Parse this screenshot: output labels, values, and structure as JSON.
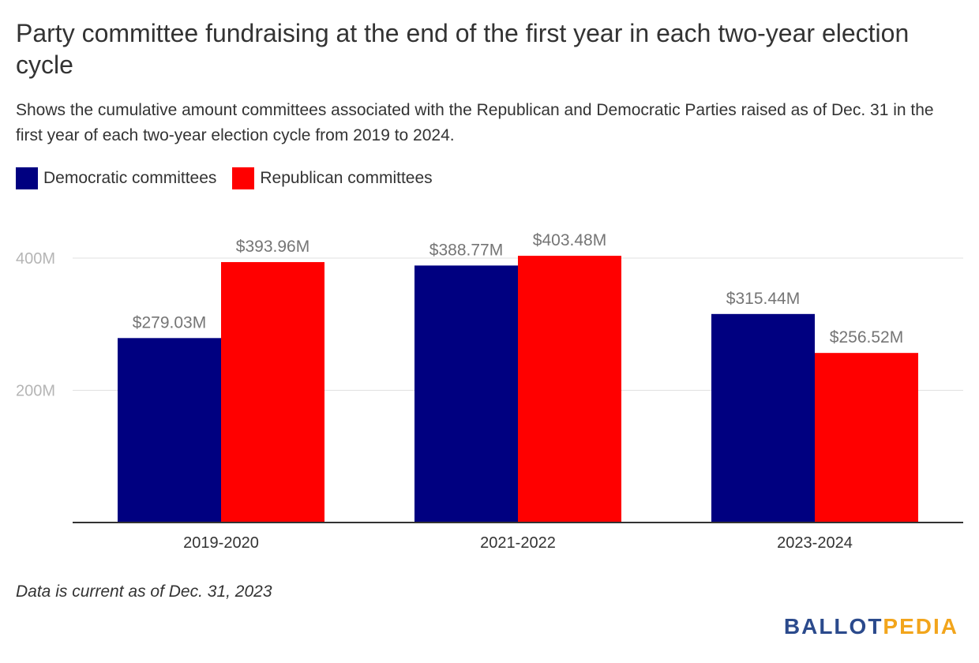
{
  "title": "Party committee fundraising at the end of the first year in each two-year election cycle",
  "subtitle": "Shows the cumulative amount committees associated with the Republican and Democratic Parties raised as of Dec. 31 in the first year of each two-year election cycle from 2019 to 2024.",
  "footnote": "Data is current as of Dec. 31, 2023",
  "logo": {
    "part1": "BALLOT",
    "part2": "PEDIA",
    "colors": {
      "part1": "#2b4a8c",
      "part2": "#f2a51c"
    }
  },
  "chart_data": {
    "type": "bar",
    "categories": [
      "2019-2020",
      "2021-2022",
      "2023-2024"
    ],
    "series": [
      {
        "name": "Democratic committees",
        "color": "#000080",
        "values": [
          279.03,
          388.77,
          315.44
        ],
        "labels": [
          "$279.03M",
          "$388.77M",
          "$315.44M"
        ]
      },
      {
        "name": "Republican committees",
        "color": "#ff0000",
        "values": [
          393.96,
          403.48,
          256.52
        ],
        "labels": [
          "$393.96M",
          "$403.48M",
          "$256.52M"
        ]
      }
    ],
    "yticks": [
      200,
      400
    ],
    "ytick_labels": [
      "200M",
      "400M"
    ],
    "ylim": [
      0,
      400
    ],
    "grid": true,
    "legend": "top-left"
  }
}
